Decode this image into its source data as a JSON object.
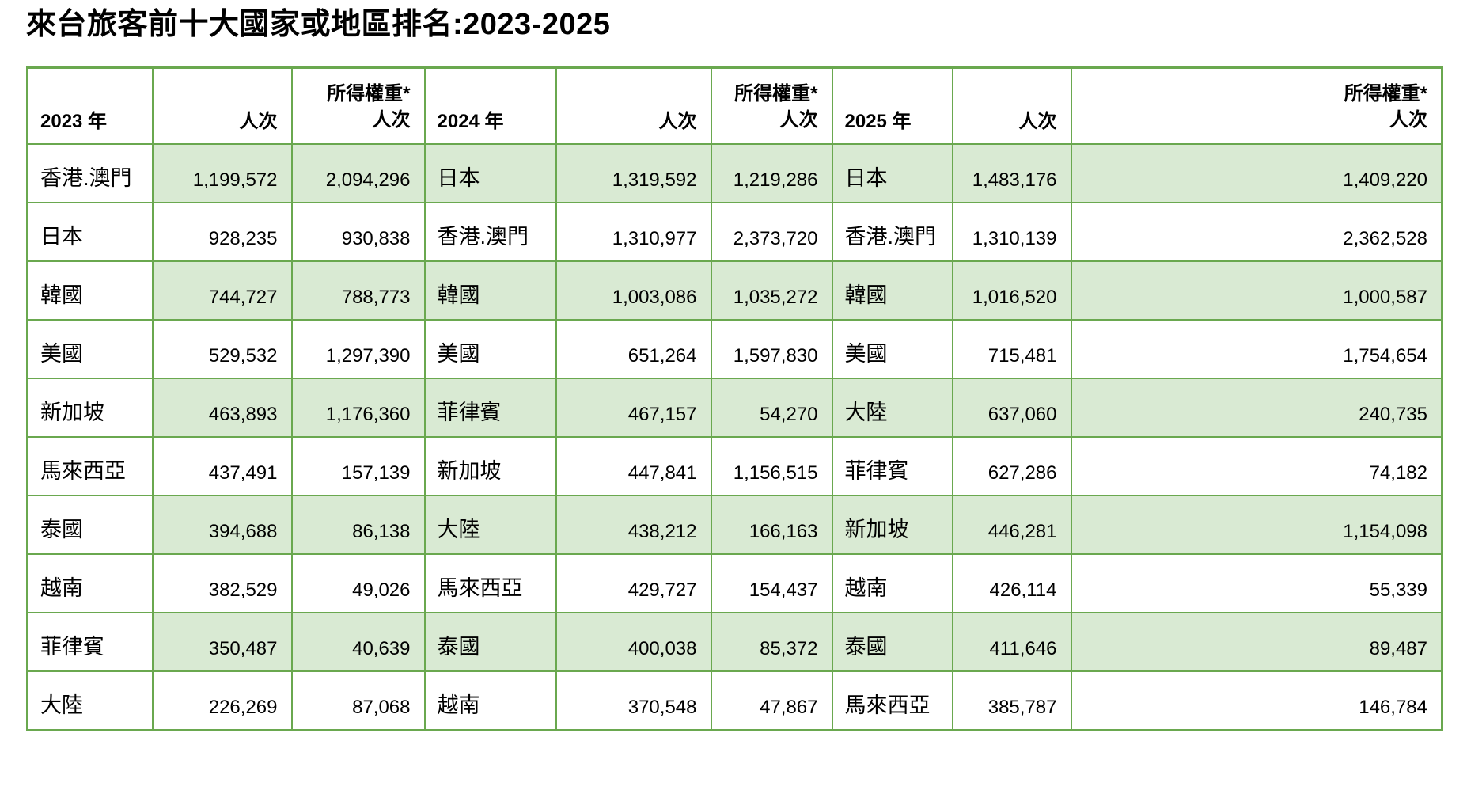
{
  "page": {
    "title": "來台旅客前十大國家或地區排名:2023-2025"
  },
  "colors": {
    "table_border_green": "#6aa84f",
    "row_stripe_green": "#d9ead3",
    "text": "#000000",
    "background": "#ffffff"
  },
  "table": {
    "headers": {
      "years": [
        "2023 年",
        "2024 年",
        "2025 年"
      ],
      "visits": "人次",
      "weighted_line1": "所得權重*",
      "weighted_line2": "人次"
    },
    "rows": [
      [
        "香港.澳門",
        "1,199,572",
        "2,094,296",
        "日本",
        "1,319,592",
        "1,219,286",
        "日本",
        "1,483,176",
        "1,409,220"
      ],
      [
        "日本",
        "928,235",
        "930,838",
        "香港.澳門",
        "1,310,977",
        "2,373,720",
        "香港.澳門",
        "1,310,139",
        "2,362,528"
      ],
      [
        "韓國",
        "744,727",
        "788,773",
        "韓國",
        "1,003,086",
        "1,035,272",
        "韓國",
        "1,016,520",
        "1,000,587"
      ],
      [
        "美國",
        "529,532",
        "1,297,390",
        "美國",
        "651,264",
        "1,597,830",
        "美國",
        "715,481",
        "1,754,654"
      ],
      [
        "新加坡",
        "463,893",
        "1,176,360",
        "菲律賓",
        "467,157",
        "54,270",
        "大陸",
        "637,060",
        "240,735"
      ],
      [
        "馬來西亞",
        "437,491",
        "157,139",
        "新加坡",
        "447,841",
        "1,156,515",
        "菲律賓",
        "627,286",
        "74,182"
      ],
      [
        "泰國",
        "394,688",
        "86,138",
        "大陸",
        "438,212",
        "166,163",
        "新加坡",
        "446,281",
        "1,154,098"
      ],
      [
        "越南",
        "382,529",
        "49,026",
        "馬來西亞",
        "429,727",
        "154,437",
        "越南",
        "426,114",
        "55,339"
      ],
      [
        "菲律賓",
        "350,487",
        "40,639",
        "泰國",
        "400,038",
        "85,372",
        "泰國",
        "411,646",
        "89,487"
      ],
      [
        "大陸",
        "226,269",
        "87,068",
        "越南",
        "370,548",
        "47,867",
        "馬來西亞",
        "385,787",
        "146,784"
      ]
    ]
  }
}
